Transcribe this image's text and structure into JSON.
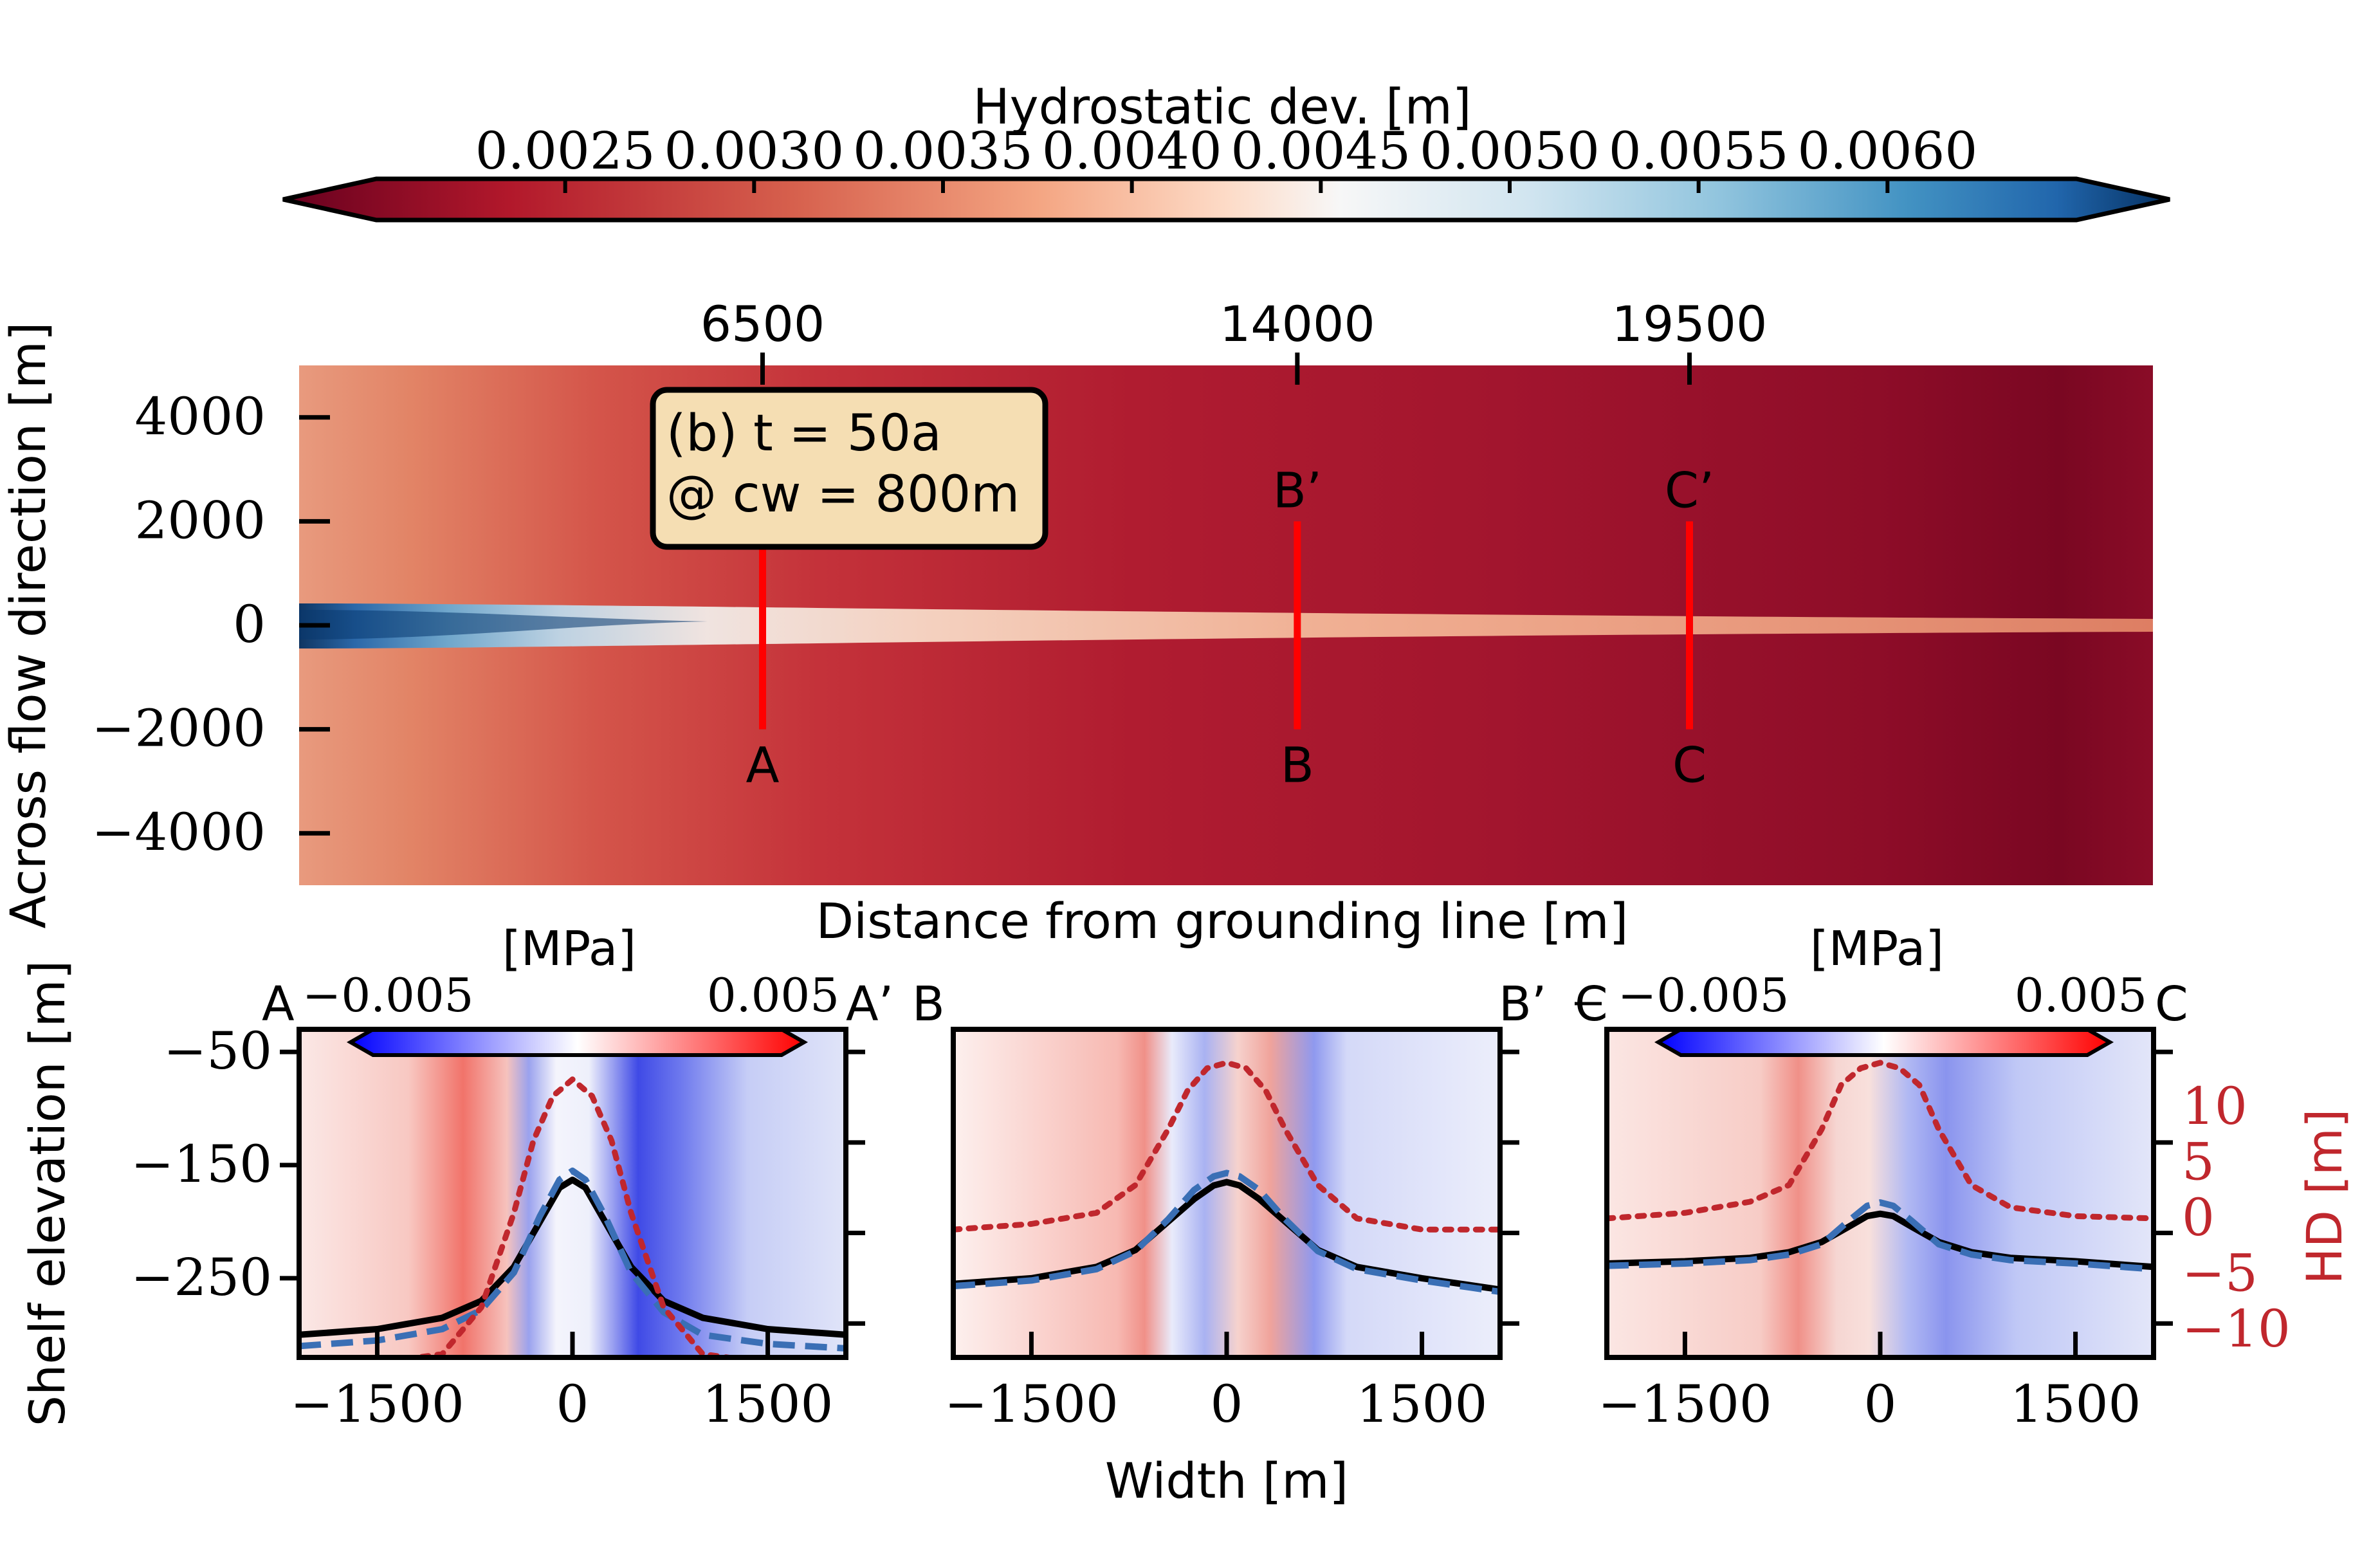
{
  "colors": {
    "marker_line": "#ff0000",
    "hd_line": "#c0272d",
    "bed_line": "#000000",
    "surface_dashed": "#3a6fb5",
    "panel_box_fill": "#f5deb3",
    "hd_axis_color": "#c0272d"
  },
  "chart_data": [
    {
      "type": "heatmap",
      "panel": "map",
      "annotation_line1": "(b) t = 50a",
      "annotation_line2": "@ cw = 800m",
      "xlabel": "Distance from grounding line [m]",
      "ylabel": "Across flow direction [m]",
      "x_range": [
        0,
        26000
      ],
      "ylim": [
        -5000,
        5000
      ],
      "top_ticks": [
        6500,
        14000,
        19500
      ],
      "y_ticks": [
        4000,
        2000,
        0,
        -2000,
        -4000
      ],
      "y_tick_labels": [
        "4000",
        "2000",
        "0",
        "−2000",
        "−4000"
      ],
      "transects": [
        {
          "x": 6500,
          "y_from": -2000,
          "y_to": 2000,
          "start_label": "A",
          "end_label": "A’"
        },
        {
          "x": 14000,
          "y_from": -2000,
          "y_to": 2000,
          "start_label": "B",
          "end_label": "B’"
        },
        {
          "x": 19500,
          "y_from": -2000,
          "y_to": 2000,
          "start_label": "C",
          "end_label": "C’"
        }
      ],
      "colorbar": {
        "label": "Hydrostatic dev. [m]",
        "colormap": "RdBu",
        "range": [
          0.002,
          0.0065
        ],
        "ticks": [
          0.0025,
          0.003,
          0.0035,
          0.004,
          0.0045,
          0.005,
          0.0055,
          0.006
        ],
        "tick_labels": [
          "0.0025",
          "0.0030",
          "0.0035",
          "0.0040",
          "0.0045",
          "0.0050",
          "0.0055",
          "0.0060"
        ],
        "extend": "both"
      }
    },
    {
      "type": "line",
      "panel": "transect-A",
      "left_label": "A",
      "right_label": "A’",
      "ylabel": "Shelf elevation [m]",
      "xlabel": "",
      "xlim": [
        -2100,
        2100
      ],
      "ylim": [
        -320,
        -30
      ],
      "x_ticks": [
        -1500,
        0,
        1500
      ],
      "x_tick_labels": [
        "−1500",
        "0",
        "1500"
      ],
      "y_ticks": [
        -50,
        -150,
        -250
      ],
      "y_tick_labels": [
        "−50",
        "−150",
        "−250"
      ],
      "stress_colorbar": {
        "label": "[MPa]",
        "min_label": "−0.005",
        "max_label": "0.005",
        "range": [
          -0.005,
          0.005
        ]
      },
      "series": [
        {
          "style": "solid",
          "x": [
            -2100,
            -1500,
            -1000,
            -700,
            -450,
            -250,
            -100,
            0,
            100,
            250,
            450,
            700,
            1000,
            1500,
            2100
          ],
          "y": [
            -300,
            -295,
            -285,
            -270,
            -240,
            -200,
            -170,
            -163,
            -170,
            -200,
            -240,
            -270,
            -285,
            -295,
            -300
          ]
        },
        {
          "style": "dashed",
          "x": [
            -2100,
            -1500,
            -1000,
            -700,
            -450,
            -250,
            -100,
            0,
            100,
            250,
            450,
            700,
            1000,
            1500,
            2100
          ],
          "y": [
            -310,
            -305,
            -295,
            -278,
            -245,
            -195,
            -163,
            -155,
            -163,
            -195,
            -245,
            -280,
            -300,
            -308,
            -312
          ]
        },
        {
          "style": "dotted",
          "axis": "hd",
          "x": [
            -2100,
            -1500,
            -1000,
            -700,
            -450,
            -300,
            -150,
            0,
            150,
            300,
            450,
            700,
            1000,
            1500,
            2100
          ],
          "y": [
            -13.5,
            -13.0,
            -12.2,
            -8.0,
            0.5,
            7.0,
            11.0,
            12.5,
            11.0,
            7.0,
            0.5,
            -8.0,
            -12.2,
            -13.0,
            -13.5
          ]
        }
      ]
    },
    {
      "type": "line",
      "panel": "transect-B",
      "left_label": "B",
      "right_label": "B’",
      "xlabel": "Width [m]",
      "xlim": [
        -2100,
        2100
      ],
      "ylim": [
        -320,
        -30
      ],
      "x_ticks": [
        -1500,
        0,
        1500
      ],
      "x_tick_labels": [
        "−1500",
        "0",
        "1500"
      ],
      "series": [
        {
          "style": "solid",
          "x": [
            -2100,
            -1500,
            -1000,
            -700,
            -450,
            -250,
            -100,
            0,
            100,
            250,
            450,
            700,
            1000,
            1500,
            2100
          ],
          "y": [
            -255,
            -250,
            -240,
            -225,
            -200,
            -180,
            -168,
            -165,
            -168,
            -180,
            -200,
            -225,
            -240,
            -250,
            -260
          ]
        },
        {
          "style": "dashed",
          "x": [
            -2100,
            -1500,
            -1000,
            -700,
            -450,
            -250,
            -100,
            0,
            100,
            250,
            450,
            700,
            1000,
            1500,
            2100
          ],
          "y": [
            -257,
            -252,
            -242,
            -226,
            -198,
            -172,
            -160,
            -157,
            -160,
            -172,
            -198,
            -226,
            -242,
            -252,
            -262
          ]
        },
        {
          "style": "dotted",
          "axis": "hd",
          "x": [
            -2100,
            -1500,
            -1000,
            -700,
            -450,
            -300,
            -150,
            0,
            150,
            300,
            450,
            700,
            1000,
            1500,
            2100
          ],
          "y": [
            -1.0,
            -0.5,
            0.5,
            3.0,
            8.0,
            11.5,
            13.5,
            14.0,
            13.5,
            11.5,
            8.0,
            3.0,
            0.0,
            -1.0,
            -1.0
          ]
        }
      ]
    },
    {
      "type": "line",
      "panel": "transect-C",
      "left_label": "C",
      "right_label": "C",
      "ylabel_right": "HD [m]",
      "xlabel": "",
      "xlim": [
        -2100,
        2100
      ],
      "ylim": [
        -320,
        -30
      ],
      "x_ticks": [
        -1500,
        0,
        1500
      ],
      "x_tick_labels": [
        "−1500",
        "0",
        "1500"
      ],
      "hd_lim": [
        -12.5,
        17
      ],
      "hd_ticks": [
        10,
        5,
        0,
        -5,
        -10
      ],
      "hd_tick_labels": [
        "10",
        "5",
        "0",
        "−5",
        "−10"
      ],
      "stress_colorbar": {
        "label": "[MPa]",
        "min_label": "−0.005",
        "max_label": "0.005",
        "range": [
          -0.005,
          0.005
        ]
      },
      "series": [
        {
          "style": "solid",
          "x": [
            -2100,
            -1500,
            -1000,
            -700,
            -450,
            -250,
            -100,
            0,
            100,
            250,
            450,
            700,
            1000,
            1500,
            2100
          ],
          "y": [
            -237,
            -235,
            -232,
            -227,
            -218,
            -205,
            -195,
            -193,
            -195,
            -205,
            -218,
            -227,
            -232,
            -235,
            -240
          ]
        },
        {
          "style": "dashed",
          "x": [
            -2100,
            -1500,
            -1000,
            -700,
            -450,
            -250,
            -100,
            0,
            100,
            250,
            450,
            700,
            1000,
            1500,
            2100
          ],
          "y": [
            -239,
            -237,
            -234,
            -229,
            -220,
            -200,
            -186,
            -183,
            -186,
            -200,
            -220,
            -229,
            -234,
            -237,
            -242
          ]
        },
        {
          "style": "dotted",
          "axis": "hd",
          "x": [
            -2100,
            -1500,
            -1000,
            -700,
            -450,
            -300,
            -150,
            0,
            150,
            300,
            450,
            700,
            1000,
            1500,
            2100
          ],
          "y": [
            0.0,
            0.5,
            1.5,
            3.0,
            8.0,
            12.0,
            13.5,
            14.0,
            13.5,
            12.0,
            8.0,
            3.0,
            1.0,
            0.2,
            0.0
          ]
        }
      ]
    }
  ]
}
